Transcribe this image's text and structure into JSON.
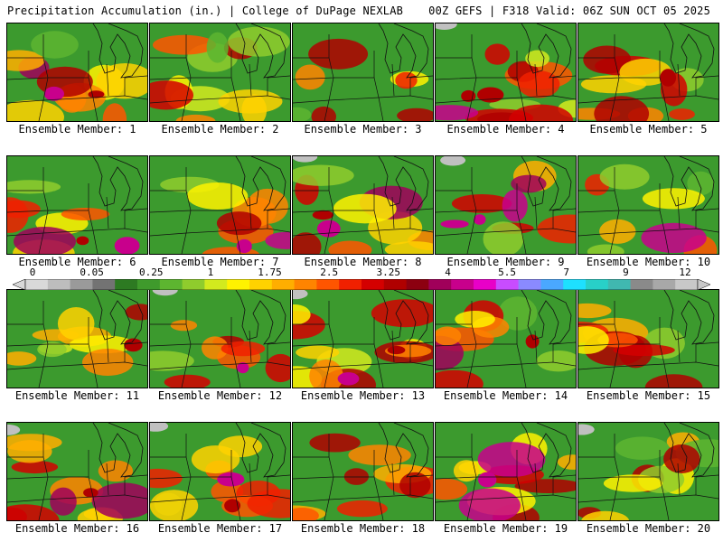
{
  "header": {
    "left_title": "Precipitation Accumulation (in.) | College of DuPage NEXLAB",
    "right_title": "00Z GEFS | F318 Valid: 06Z SUN OCT 05 2025"
  },
  "panels": [
    {
      "label": "Ensemble Member: 1"
    },
    {
      "label": "Ensemble Member: 2"
    },
    {
      "label": "Ensemble Member: 3"
    },
    {
      "label": "Ensemble Member: 4"
    },
    {
      "label": "Ensemble Member: 5"
    },
    {
      "label": "Ensemble Member: 6"
    },
    {
      "label": "Ensemble Member: 7"
    },
    {
      "label": "Ensemble Member: 8"
    },
    {
      "label": "Ensemble Member: 9"
    },
    {
      "label": "Ensemble Member: 10"
    },
    {
      "label": "Ensemble Member: 11"
    },
    {
      "label": "Ensemble Member: 12"
    },
    {
      "label": "Ensemble Member: 13"
    },
    {
      "label": "Ensemble Member: 14"
    },
    {
      "label": "Ensemble Member: 15"
    },
    {
      "label": "Ensemble Member: 16"
    },
    {
      "label": "Ensemble Member: 17"
    },
    {
      "label": "Ensemble Member: 18"
    },
    {
      "label": "Ensemble Member: 19"
    },
    {
      "label": "Ensemble Member: 20"
    }
  ],
  "colorbar": {
    "tick_labels": [
      "0",
      "0.05",
      "0.25",
      "1",
      "1.75",
      "2.5",
      "3.25",
      "4",
      "5.5",
      "7",
      "9",
      "12"
    ],
    "colors": [
      "#d9d9d9",
      "#bdbdbd",
      "#9a9a9a",
      "#737373",
      "#2d7a22",
      "#3f9a2c",
      "#5db530",
      "#8fcc2d",
      "#d2ea1e",
      "#fff200",
      "#ffd200",
      "#ffae00",
      "#ff8400",
      "#ff5500",
      "#f02000",
      "#d40000",
      "#b00000",
      "#8c0010",
      "#a0005a",
      "#c8008c",
      "#e800c8",
      "#c84cff",
      "#8a8aff",
      "#4aa8ff",
      "#1ee0ff",
      "#28d0c8",
      "#40b8b0",
      "#8a8a8a",
      "#a8a8a8",
      "#c8c8c8"
    ]
  }
}
